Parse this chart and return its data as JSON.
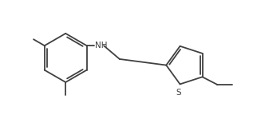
{
  "background_color": "#ffffff",
  "line_color": "#404040",
  "text_color": "#404040",
  "line_width": 1.3,
  "font_size": 7.5,
  "figsize": [
    3.17,
    1.54
  ],
  "dpi": 100,
  "xlim": [
    0,
    10
  ],
  "ylim": [
    0,
    5
  ]
}
